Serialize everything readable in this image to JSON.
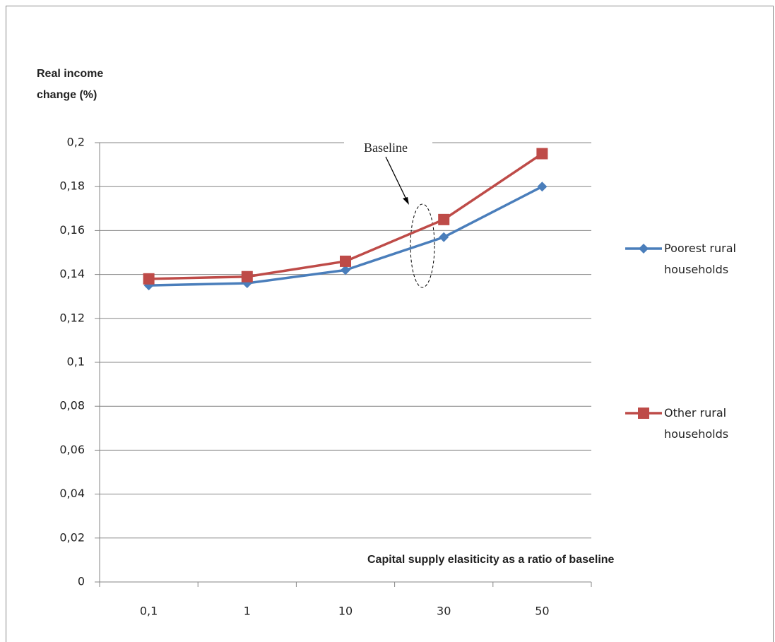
{
  "chart_data": {
    "type": "line",
    "ylabel": "Real income change (%)",
    "xlabel": "Capital supply elasiticity as a ratio of baseline",
    "annotations": [
      {
        "text": "Baseline"
      }
    ],
    "categories": [
      "0,1",
      "1",
      "10",
      "30",
      "50"
    ],
    "series": [
      {
        "name": "Poorest rural households",
        "color": "#4a7ebb",
        "marker": "diamond",
        "values": [
          0.135,
          0.136,
          0.142,
          0.157,
          0.18
        ]
      },
      {
        "name": "Other rural households",
        "color": "#be4b48",
        "marker": "square",
        "values": [
          0.138,
          0.139,
          0.146,
          0.165,
          0.195
        ]
      }
    ],
    "ylim": [
      0,
      0.2
    ],
    "yticks": [
      0,
      {
        "value": 0.02,
        "label": "0,02"
      },
      {
        "value": 0.04,
        "label": "0,04"
      },
      {
        "value": 0.06,
        "label": "0,06"
      },
      {
        "value": 0.08,
        "label": "0,08"
      },
      {
        "value": 0.1,
        "label": "0,1"
      },
      {
        "value": 0.12,
        "label": "0,12"
      },
      {
        "value": 0.14,
        "label": "0,14"
      },
      {
        "value": 0.16,
        "label": "0,16"
      },
      {
        "value": 0.18,
        "label": "0,18"
      },
      {
        "value": 0.2,
        "label": "0,2"
      }
    ],
    "grid": true,
    "legend": "right"
  }
}
